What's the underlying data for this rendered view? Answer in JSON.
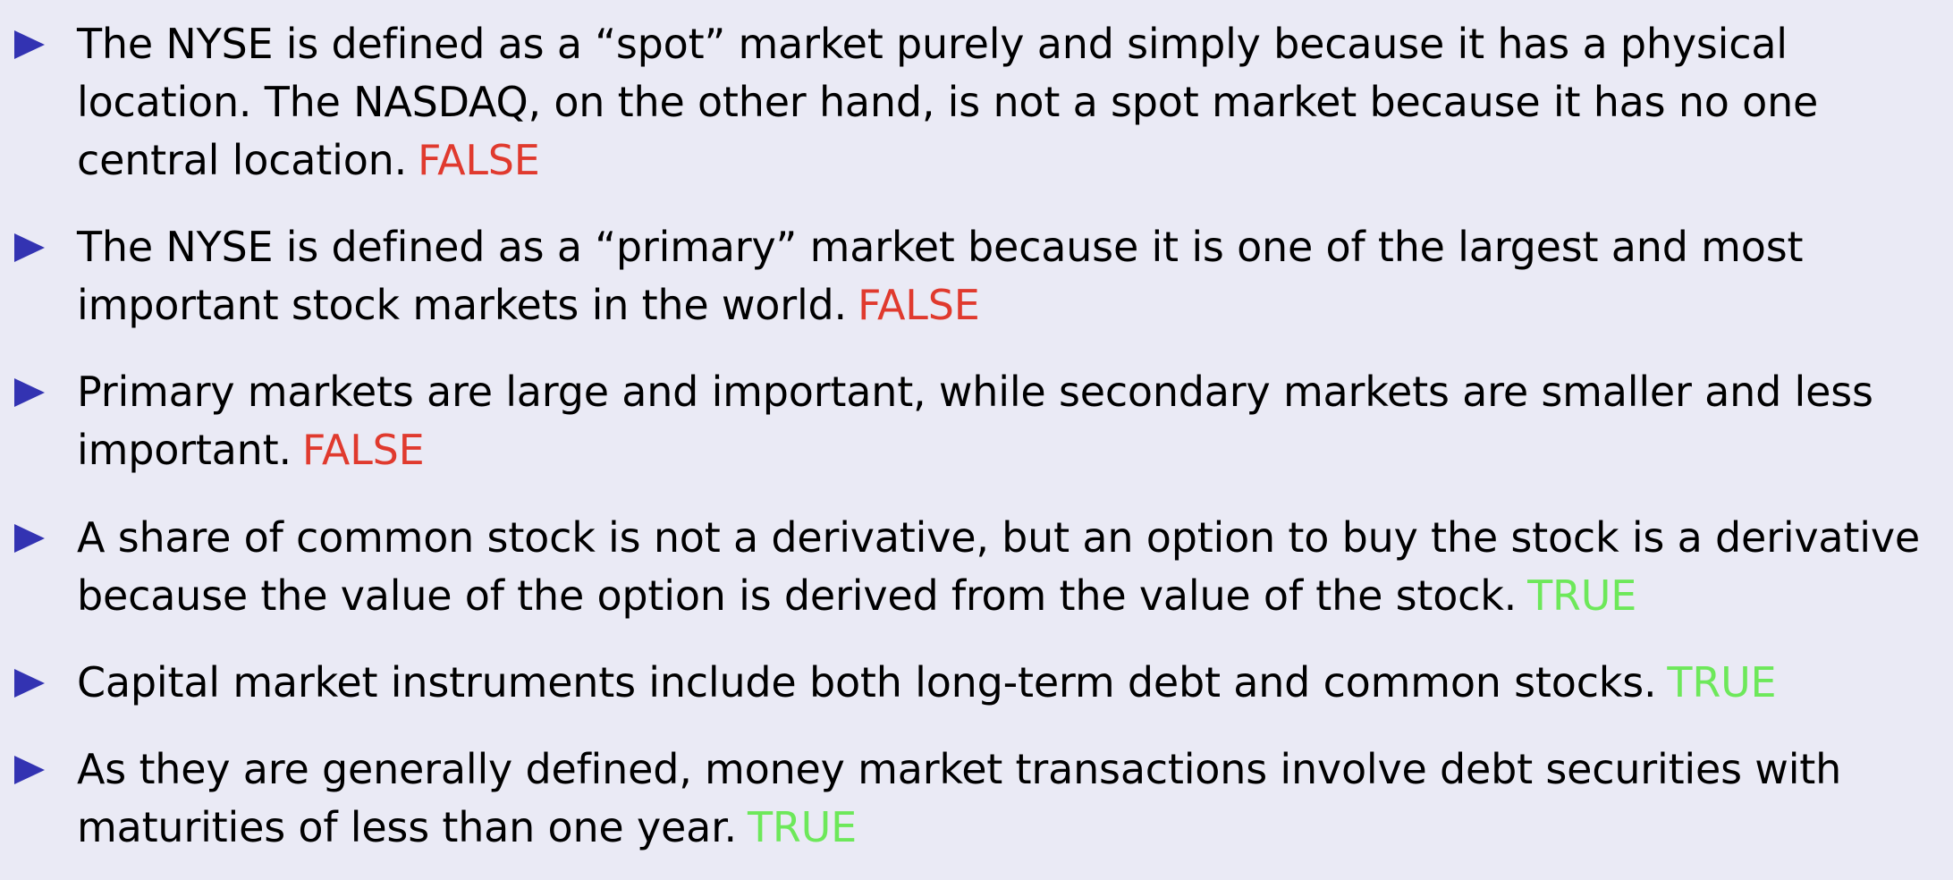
{
  "slide": {
    "items": [
      {
        "text": "The NYSE is defined as a “spot” market purely and simply because it has a physical location. The NASDAQ, on the other hand, is not a spot market because it has no one central location.",
        "answer": "FALSE"
      },
      {
        "text": "The NYSE is defined as a “primary” market because it is one of the largest and most important stock markets in the world.",
        "answer": "FALSE"
      },
      {
        "text": "Primary markets are large and important, while secondary markets are smaller and less important.",
        "answer": "FALSE"
      },
      {
        "text": "A share of common stock is not a derivative, but an option to buy the stock is a derivative because the value of the option is derived from the value of the stock.",
        "answer": "TRUE"
      },
      {
        "text": "Capital market instruments include both long-term debt and common stocks.",
        "answer": "TRUE"
      },
      {
        "text": "As they are generally defined, money market transactions involve debt securities with maturities of less than one year.",
        "answer": "TRUE"
      }
    ]
  },
  "colors": {
    "background": "#eaeaf5",
    "bullet": "#3333b2",
    "false": "#e03a2e",
    "true": "#6de85a"
  }
}
